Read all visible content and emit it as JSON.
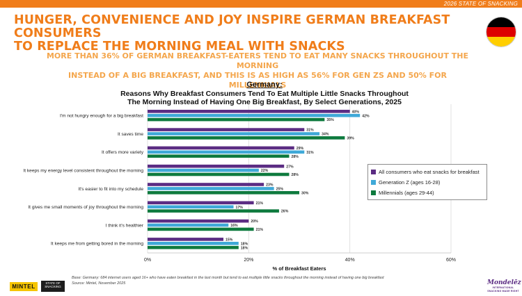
{
  "header": {
    "report_label": "2026 STATE OF SNACKING",
    "headline_line1": "HUNGER, CONVENIENCE AND JOY INSPIRE GERMAN BREAKFAST CONSUMERS",
    "headline_line2": "TO REPLACE THE MORNING MEAL WITH SNACKS",
    "subhead_line1": "MORE THAN 36% OF GERMAN BREAKFAST-EATERS TEND TO EAT MANY SNACKS THROUGHOUT THE MORNING",
    "subhead_line2": "INSTEAD OF A BIG BREAKFAST, AND THIS IS AS HIGH AS 56% FOR GEN ZS AND 50% FOR MILLENNIALS"
  },
  "flag": {
    "colors": [
      "#000000",
      "#dd0000",
      "#ffce00"
    ]
  },
  "chart_data": {
    "type": "bar",
    "orientation": "horizontal",
    "country": "Germany:",
    "title_line1": "Reasons Why Breakfast Consumers Tend To Eat Multiple Little Snacks Throughout",
    "title_line2": "The Morning Instead of Having One Big Breakfast, By Select Generations, 2025",
    "categories": [
      "I'm not hungry enough for a big breakfast",
      "It saves time",
      "It offers more variety",
      "It keeps my energy level consistent throughout the morning",
      "It's easier to fit into my schedule",
      "It gives me small moments of joy throughout the morning",
      "I think it's healthier",
      "It keeps me from getting bored in the morning"
    ],
    "series": [
      {
        "name": "All consumers who eat snacks for breakfast",
        "color": "#5b2c83",
        "values": [
          40,
          31,
          29,
          27,
          23,
          21,
          20,
          15
        ]
      },
      {
        "name": "Generation Z (ages 16-28)",
        "color": "#3fa9d8",
        "values": [
          42,
          34,
          31,
          22,
          25,
          17,
          16,
          18
        ]
      },
      {
        "name": "Millennials (ages 29-44)",
        "color": "#0e7a3e",
        "values": [
          35,
          39,
          28,
          28,
          30,
          26,
          21,
          18
        ]
      }
    ],
    "xlim": [
      0,
      60
    ],
    "xticks": [
      "0%",
      "20%",
      "40%",
      "60%"
    ],
    "xtick_values": [
      0,
      20,
      40,
      60
    ],
    "xlabel": "% of Breakfast Eaters",
    "value_suffix": "%",
    "grid": true,
    "legend_position": "right"
  },
  "footer": {
    "base": "Base: Germany: 684 internet users aged 16+ who have eaten breakfast in the last month but tend to eat multiple little snacks throughout the morning instead of having one big breakfast",
    "source": "Source: Mintel, November 2025",
    "logo_mintel": "MINTEL",
    "logo_sos_line1": "STATE OF",
    "logo_sos_line2": "SNACKING",
    "logo_mondelez": "Mondelēz",
    "logo_mondelez_tag": "INTERNATIONAL SNACKING MADE RIGHT"
  }
}
